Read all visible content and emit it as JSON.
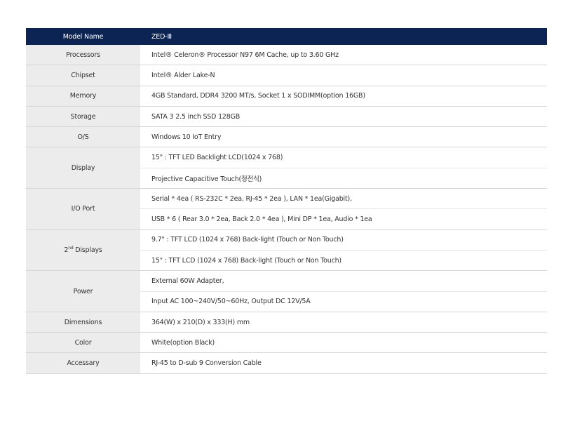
{
  "header": {
    "label": "Model Name",
    "value": "ZED-Ⅲ"
  },
  "colors": {
    "header_bg": "#0c2454",
    "label_bg": "#ececec"
  },
  "rows": [
    {
      "label": "Processors",
      "values": [
        "Intel® Celeron® Processor N97 6M Cache, up to 3.60 GHz"
      ]
    },
    {
      "label": "Chipset",
      "values": [
        "Intel® Alder Lake-N"
      ]
    },
    {
      "label": "Memory",
      "values": [
        "4GB Standard, DDR4 3200 MT/s, Socket 1 x SODIMM(option 16GB)"
      ]
    },
    {
      "label": "Storage",
      "values": [
        "SATA 3 2.5 inch SSD 128GB"
      ]
    },
    {
      "label": "O/S",
      "values": [
        "Windows 10 IoT Entry"
      ]
    },
    {
      "label": "Display",
      "values": [
        "15\" : TFT LED Backlight LCD(1024 x 768)",
        "Projective Capacitive Touch(정전식)"
      ]
    },
    {
      "label": "I/O Port",
      "values": [
        "Serial * 4ea ( RS-232C * 2ea, RJ-45 * 2ea ), LAN * 1ea(Gigabit),",
        "USB * 6 ( Rear 3.0 * 2ea, Back 2.0 * 4ea ), Mini DP * 1ea, Audio * 1ea"
      ]
    },
    {
      "label_main": "2",
      "label_sup": "nd",
      "label_rest": " Displays",
      "values": [
        "9.7\" : TFT LCD (1024 x 768) Back-light (Touch or Non Touch)",
        "15\" : TFT LCD (1024 x 768) Back-light (Touch or Non Touch)"
      ]
    },
    {
      "label": "Power",
      "values": [
        "External 60W Adapter,",
        "Input AC 100~240V/50~60Hz, Output DC 12V/5A"
      ]
    },
    {
      "label": "Dimensions",
      "values": [
        "364(W) x 210(D) x 333(H) mm"
      ]
    },
    {
      "label": "Color",
      "values": [
        "White(option Black)"
      ]
    },
    {
      "label": "Accessary",
      "values": [
        "RJ-45 to D-sub 9 Conversion Cable"
      ]
    }
  ]
}
